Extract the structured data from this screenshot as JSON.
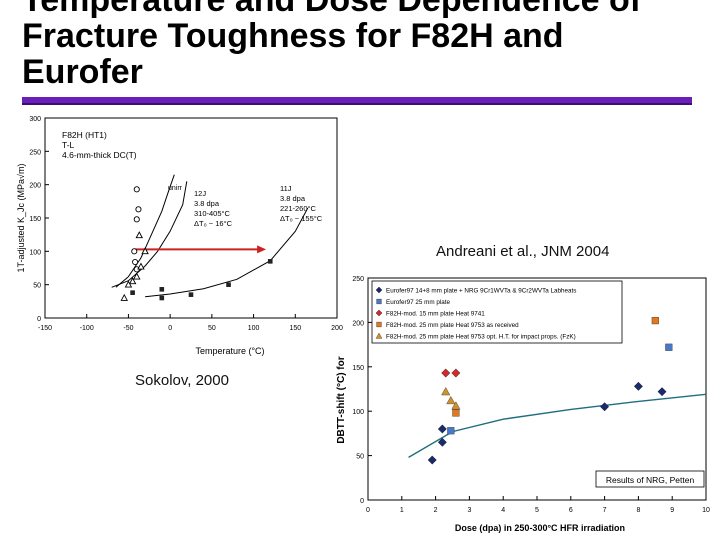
{
  "slide": {
    "title_line1": "Temperature and Dose Dependence of",
    "title_line2": "Fracture Toughness for F82H and",
    "title_line3": "Eurofer",
    "accent_color": "#6a1fb8",
    "caption_left": "Sokolov, 2000",
    "caption_right": "Andreani et al., JNM 2004"
  },
  "chart_data": [
    {
      "type": "scatter",
      "title": "",
      "xlabel": "Temperature (°C)",
      "ylabel": "1T-adjusted K_Jc (MPa√m)",
      "xlim": [
        -150,
        200
      ],
      "ylim": [
        0,
        300
      ],
      "xticks": [
        -150,
        -100,
        -50,
        0,
        50,
        100,
        150,
        200
      ],
      "yticks": [
        0,
        50,
        100,
        150,
        200,
        250,
        300
      ],
      "grid": false,
      "annotations": {
        "material": "F82H (HT1)",
        "orientation": "T-L",
        "specimen": "4.6-mm-thick DC(T)",
        "unirr_label": "unirr",
        "irr1": [
          "12J",
          "3.8 dpa",
          "310-405°C",
          "ΔT₀ ~ 16°C"
        ],
        "irr2": [
          "11J",
          "3.8 dpa",
          "221-260°C",
          "ΔT₀ ~ 155°C"
        ]
      },
      "shift_arrow": {
        "from": [
          -42,
          103
        ],
        "to": [
          115,
          103
        ],
        "color": "#cc2222"
      },
      "series": [
        {
          "marker": "circle-open",
          "points": [
            [
              -40,
              193
            ],
            [
              -38,
              163
            ],
            [
              -40,
              148
            ],
            [
              -43,
              100
            ],
            [
              -42,
              84
            ],
            [
              -40,
              73
            ]
          ]
        },
        {
          "marker": "triangle-open",
          "points": [
            [
              -37,
              124
            ],
            [
              -30,
              100
            ],
            [
              -35,
              77
            ],
            [
              -40,
              62
            ],
            [
              -45,
              55
            ],
            [
              -50,
              50
            ],
            [
              -55,
              30
            ]
          ]
        },
        {
          "marker": "square-solid",
          "points": [
            [
              -45,
              38
            ],
            [
              -10,
              43
            ],
            [
              -10,
              30
            ],
            [
              25,
              35
            ],
            [
              70,
              50
            ],
            [
              120,
              85
            ]
          ]
        }
      ],
      "curves": [
        {
          "name": "unirr",
          "points": [
            [
              -65,
              46
            ],
            [
              -50,
              62
            ],
            [
              -35,
              90
            ],
            [
              -25,
              118
            ],
            [
              -10,
              160
            ],
            [
              -2,
              190
            ],
            [
              5,
              215
            ]
          ]
        },
        {
          "name": "12J",
          "points": [
            [
              -70,
              46
            ],
            [
              -50,
              56
            ],
            [
              -30,
              78
            ],
            [
              -15,
              100
            ],
            [
              0,
              130
            ],
            [
              15,
              170
            ],
            [
              20,
              205
            ]
          ]
        },
        {
          "name": "11J",
          "points": [
            [
              -30,
              32
            ],
            [
              0,
              36
            ],
            [
              40,
              44
            ],
            [
              80,
              58
            ],
            [
              120,
              86
            ],
            [
              150,
              130
            ],
            [
              165,
              165
            ]
          ]
        }
      ]
    },
    {
      "type": "scatter",
      "title": "",
      "xlabel": "Dose (dpa) in 250-300°C HFR irradiation",
      "ylabel": "DBTT-shift (°C) for",
      "xlim": [
        0,
        10
      ],
      "ylim": [
        0,
        250
      ],
      "xticks": [
        0,
        1,
        2,
        3,
        4,
        5,
        6,
        7,
        8,
        9,
        10
      ],
      "yticks": [
        0,
        50,
        100,
        150,
        200,
        250
      ],
      "grid": false,
      "legend_position": "top-left",
      "results_label": "Results of NRG, Petten",
      "series": [
        {
          "name": "Eurofer97 14+8 mm plate + NRG 9Cr1WVTa & 9Cr2WVTa Labheats",
          "marker": "diamond",
          "color": "#1a2a6c",
          "points": [
            [
              1.9,
              45
            ],
            [
              2.2,
              65
            ],
            [
              2.2,
              80
            ],
            [
              7.0,
              105
            ],
            [
              8.0,
              128
            ],
            [
              8.7,
              122
            ]
          ]
        },
        {
          "name": "Eurofer97 25 mm plate",
          "marker": "square",
          "color": "#4a78c8",
          "points": [
            [
              2.45,
              78
            ],
            [
              8.9,
              172
            ]
          ]
        },
        {
          "name": "F82H-mod. 15 mm plate Heat 9741",
          "marker": "diamond",
          "color": "#d12a2a",
          "points": [
            [
              2.3,
              143
            ],
            [
              2.6,
              143
            ]
          ]
        },
        {
          "name": "F82H-mod. 25 mm plate Heat 9753 as received",
          "marker": "square",
          "color": "#e07820",
          "points": [
            [
              2.6,
              98
            ],
            [
              8.5,
              202
            ]
          ]
        },
        {
          "name": "F82H-mod. 25 mm plate Heat 9753 opt. H.T. for impact props. (FzK)",
          "marker": "triangle",
          "color": "#d0902a",
          "points": [
            [
              2.3,
              122
            ],
            [
              2.45,
              112
            ],
            [
              2.6,
              106
            ]
          ]
        }
      ],
      "trend": [
        [
          1.2,
          48
        ],
        [
          2.5,
          77
        ],
        [
          4,
          91
        ],
        [
          6,
          102
        ],
        [
          8,
          111
        ],
        [
          10,
          119
        ]
      ]
    }
  ]
}
